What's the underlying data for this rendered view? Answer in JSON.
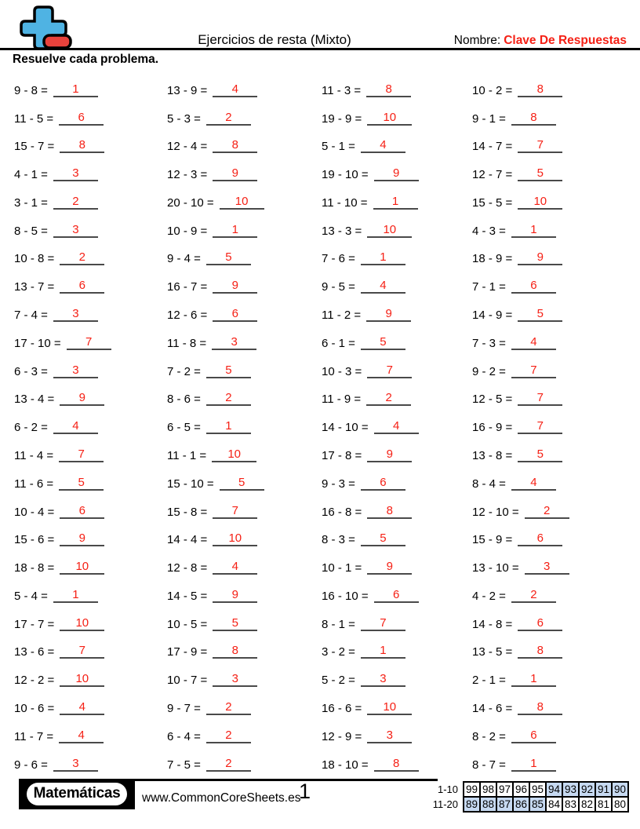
{
  "colors": {
    "answer_red": "#f52015",
    "shaded_cell": "#c6d9f1",
    "logo_blue": "#4fb3e3",
    "logo_red": "#e8423c"
  },
  "header": {
    "title": "Ejercicios de resta (Mixto)",
    "name_label": "Nombre:",
    "name_value": "Clave De Respuestas",
    "instruction": "Resuelve cada problema."
  },
  "problems": {
    "columns": [
      {
        "items": [
          {
            "expr": "9 - 8 =",
            "answer": "1"
          },
          {
            "expr": "11 - 5 =",
            "answer": "6"
          },
          {
            "expr": "15 - 7 =",
            "answer": "8"
          },
          {
            "expr": "4 - 1 =",
            "answer": "3"
          },
          {
            "expr": "3 - 1 =",
            "answer": "2"
          },
          {
            "expr": "8 - 5 =",
            "answer": "3"
          },
          {
            "expr": "10 - 8 =",
            "answer": "2"
          },
          {
            "expr": "13 - 7 =",
            "answer": "6"
          },
          {
            "expr": "7 - 4 =",
            "answer": "3"
          },
          {
            "expr": "17 - 10 =",
            "answer": "7"
          },
          {
            "expr": "6 - 3 =",
            "answer": "3"
          },
          {
            "expr": "13 - 4 =",
            "answer": "9"
          },
          {
            "expr": "6 - 2 =",
            "answer": "4"
          },
          {
            "expr": "11 - 4 =",
            "answer": "7"
          },
          {
            "expr": "11 - 6 =",
            "answer": "5"
          },
          {
            "expr": "10 - 4 =",
            "answer": "6"
          },
          {
            "expr": "15 - 6 =",
            "answer": "9"
          },
          {
            "expr": "18 - 8 =",
            "answer": "10"
          },
          {
            "expr": "5 - 4 =",
            "answer": "1"
          },
          {
            "expr": "17 - 7 =",
            "answer": "10"
          },
          {
            "expr": "13 - 6 =",
            "answer": "7"
          },
          {
            "expr": "12 - 2 =",
            "answer": "10"
          },
          {
            "expr": "10 - 6 =",
            "answer": "4"
          },
          {
            "expr": "11 - 7 =",
            "answer": "4"
          },
          {
            "expr": "9 - 6 =",
            "answer": "3"
          }
        ]
      },
      {
        "items": [
          {
            "expr": "13 - 9 =",
            "answer": "4"
          },
          {
            "expr": "5 - 3 =",
            "answer": "2"
          },
          {
            "expr": "12 - 4 =",
            "answer": "8"
          },
          {
            "expr": "12 - 3 =",
            "answer": "9"
          },
          {
            "expr": "20 - 10 =",
            "answer": "10"
          },
          {
            "expr": "10 - 9 =",
            "answer": "1"
          },
          {
            "expr": "9 - 4 =",
            "answer": "5"
          },
          {
            "expr": "16 - 7 =",
            "answer": "9"
          },
          {
            "expr": "12 - 6 =",
            "answer": "6"
          },
          {
            "expr": "11 - 8 =",
            "answer": "3"
          },
          {
            "expr": "7 - 2 =",
            "answer": "5"
          },
          {
            "expr": "8 - 6 =",
            "answer": "2"
          },
          {
            "expr": "6 - 5 =",
            "answer": "1"
          },
          {
            "expr": "11 - 1 =",
            "answer": "10"
          },
          {
            "expr": "15 - 10 =",
            "answer": "5"
          },
          {
            "expr": "15 - 8 =",
            "answer": "7"
          },
          {
            "expr": "14 - 4 =",
            "answer": "10"
          },
          {
            "expr": "12 - 8 =",
            "answer": "4"
          },
          {
            "expr": "14 - 5 =",
            "answer": "9"
          },
          {
            "expr": "10 - 5 =",
            "answer": "5"
          },
          {
            "expr": "17 - 9 =",
            "answer": "8"
          },
          {
            "expr": "10 - 7 =",
            "answer": "3"
          },
          {
            "expr": "9 - 7 =",
            "answer": "2"
          },
          {
            "expr": "6 - 4 =",
            "answer": "2"
          },
          {
            "expr": "7 - 5 =",
            "answer": "2"
          }
        ]
      },
      {
        "items": [
          {
            "expr": "11 - 3 =",
            "answer": "8"
          },
          {
            "expr": "19 - 9 =",
            "answer": "10"
          },
          {
            "expr": "5 - 1 =",
            "answer": "4"
          },
          {
            "expr": "19 - 10 =",
            "answer": "9"
          },
          {
            "expr": "11 - 10 =",
            "answer": "1"
          },
          {
            "expr": "13 - 3 =",
            "answer": "10"
          },
          {
            "expr": "7 - 6 =",
            "answer": "1"
          },
          {
            "expr": "9 - 5 =",
            "answer": "4"
          },
          {
            "expr": "11 - 2 =",
            "answer": "9"
          },
          {
            "expr": "6 - 1 =",
            "answer": "5"
          },
          {
            "expr": "10 - 3 =",
            "answer": "7"
          },
          {
            "expr": "11 - 9 =",
            "answer": "2"
          },
          {
            "expr": "14 - 10 =",
            "answer": "4"
          },
          {
            "expr": "17 - 8 =",
            "answer": "9"
          },
          {
            "expr": "9 - 3 =",
            "answer": "6"
          },
          {
            "expr": "16 - 8 =",
            "answer": "8"
          },
          {
            "expr": "8 - 3 =",
            "answer": "5"
          },
          {
            "expr": "10 - 1 =",
            "answer": "9"
          },
          {
            "expr": "16 - 10 =",
            "answer": "6"
          },
          {
            "expr": "8 - 1 =",
            "answer": "7"
          },
          {
            "expr": "3 - 2 =",
            "answer": "1"
          },
          {
            "expr": "5 - 2 =",
            "answer": "3"
          },
          {
            "expr": "16 - 6 =",
            "answer": "10"
          },
          {
            "expr": "12 - 9 =",
            "answer": "3"
          },
          {
            "expr": "18 - 10 =",
            "answer": "8"
          }
        ]
      },
      {
        "items": [
          {
            "expr": "10 - 2 =",
            "answer": "8"
          },
          {
            "expr": "9 - 1 =",
            "answer": "8"
          },
          {
            "expr": "14 - 7 =",
            "answer": "7"
          },
          {
            "expr": "12 - 7 =",
            "answer": "5"
          },
          {
            "expr": "15 - 5 =",
            "answer": "10"
          },
          {
            "expr": "4 - 3 =",
            "answer": "1"
          },
          {
            "expr": "18 - 9 =",
            "answer": "9"
          },
          {
            "expr": "7 - 1 =",
            "answer": "6"
          },
          {
            "expr": "14 - 9 =",
            "answer": "5"
          },
          {
            "expr": "7 - 3 =",
            "answer": "4"
          },
          {
            "expr": "9 - 2 =",
            "answer": "7"
          },
          {
            "expr": "12 - 5 =",
            "answer": "7"
          },
          {
            "expr": "16 - 9 =",
            "answer": "7"
          },
          {
            "expr": "13 - 8 =",
            "answer": "5"
          },
          {
            "expr": "8 - 4 =",
            "answer": "4"
          },
          {
            "expr": "12 - 10 =",
            "answer": "2"
          },
          {
            "expr": "15 - 9 =",
            "answer": "6"
          },
          {
            "expr": "13 - 10 =",
            "answer": "3"
          },
          {
            "expr": "4 - 2 =",
            "answer": "2"
          },
          {
            "expr": "14 - 8 =",
            "answer": "6"
          },
          {
            "expr": "13 - 5 =",
            "answer": "8"
          },
          {
            "expr": "2 - 1 =",
            "answer": "1"
          },
          {
            "expr": "14 - 6 =",
            "answer": "8"
          },
          {
            "expr": "8 - 2 =",
            "answer": "6"
          },
          {
            "expr": "8 - 7 =",
            "answer": "1"
          }
        ]
      }
    ]
  },
  "footer": {
    "brand": "Matemáticas",
    "website": "www.CommonCoreSheets.es",
    "page_number": "1",
    "score_table": {
      "rows": [
        {
          "label": "1-10",
          "cells": [
            {
              "value": "99",
              "shaded": false
            },
            {
              "value": "98",
              "shaded": false
            },
            {
              "value": "97",
              "shaded": false
            },
            {
              "value": "96",
              "shaded": false
            },
            {
              "value": "95",
              "shaded": false
            },
            {
              "value": "94",
              "shaded": true
            },
            {
              "value": "93",
              "shaded": true
            },
            {
              "value": "92",
              "shaded": true
            },
            {
              "value": "91",
              "shaded": true
            },
            {
              "value": "90",
              "shaded": true
            }
          ]
        },
        {
          "label": "11-20",
          "cells": [
            {
              "value": "89",
              "shaded": true
            },
            {
              "value": "88",
              "shaded": true
            },
            {
              "value": "87",
              "shaded": true
            },
            {
              "value": "86",
              "shaded": true
            },
            {
              "value": "85",
              "shaded": true
            },
            {
              "value": "84",
              "shaded": false
            },
            {
              "value": "83",
              "shaded": false
            },
            {
              "value": "82",
              "shaded": false
            },
            {
              "value": "81",
              "shaded": false
            },
            {
              "value": "80",
              "shaded": false
            }
          ]
        }
      ]
    }
  }
}
